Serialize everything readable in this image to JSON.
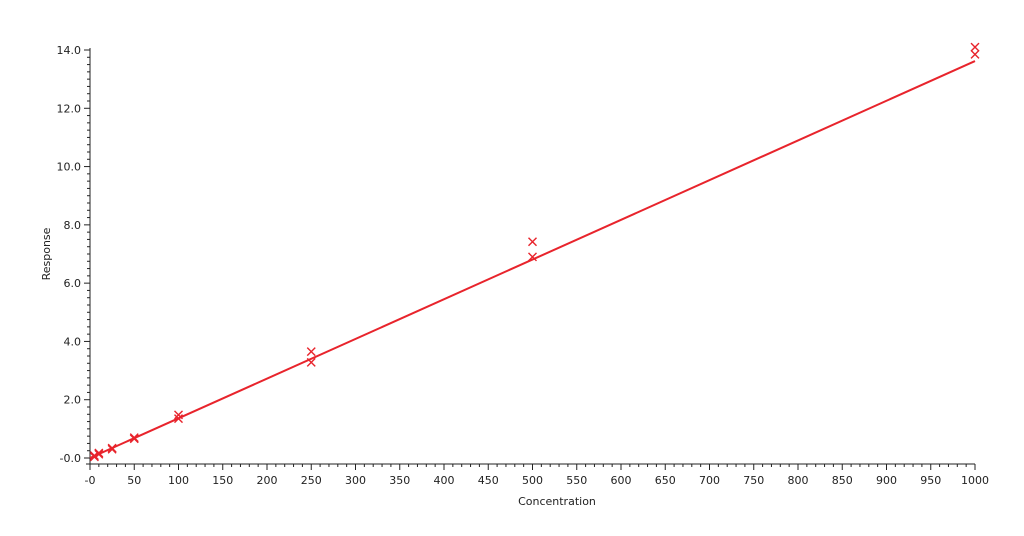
{
  "chart_data": {
    "type": "scatter",
    "xlabel": "Concentration",
    "ylabel": "Response",
    "xlim": [
      0,
      1000
    ],
    "ylim": [
      0,
      14
    ],
    "x_ticks": [
      0,
      50,
      100,
      150,
      200,
      250,
      300,
      350,
      400,
      450,
      500,
      550,
      600,
      650,
      700,
      750,
      800,
      850,
      900,
      950,
      1000
    ],
    "x_tick_labels": [
      "-0",
      "50",
      "100",
      "150",
      "200",
      "250",
      "300",
      "350",
      "400",
      "450",
      "500",
      "550",
      "600",
      "650",
      "700",
      "750",
      "800",
      "850",
      "900",
      "950",
      "1000"
    ],
    "y_ticks": [
      0,
      2,
      4,
      6,
      8,
      10,
      12,
      14
    ],
    "y_tick_labels": [
      "-0.0",
      "2.0",
      "4.0",
      "6.0",
      "8.0",
      "10.0",
      "12.0",
      "14.0"
    ],
    "grid": false,
    "color": "#e8242c",
    "points": [
      {
        "x": 5,
        "y": 0.04
      },
      {
        "x": 5,
        "y": 0.08
      },
      {
        "x": 10,
        "y": 0.13
      },
      {
        "x": 10,
        "y": 0.17
      },
      {
        "x": 25,
        "y": 0.3
      },
      {
        "x": 25,
        "y": 0.34
      },
      {
        "x": 50,
        "y": 0.66
      },
      {
        "x": 50,
        "y": 0.7
      },
      {
        "x": 100,
        "y": 1.35
      },
      {
        "x": 100,
        "y": 1.48
      },
      {
        "x": 250,
        "y": 3.28
      },
      {
        "x": 250,
        "y": 3.65
      },
      {
        "x": 500,
        "y": 6.9
      },
      {
        "x": 500,
        "y": 7.42
      },
      {
        "x": 1000,
        "y": 13.85
      },
      {
        "x": 1000,
        "y": 14.1
      }
    ],
    "fit_line": {
      "x": [
        0,
        1000
      ],
      "y": [
        0.0,
        13.62
      ]
    }
  }
}
